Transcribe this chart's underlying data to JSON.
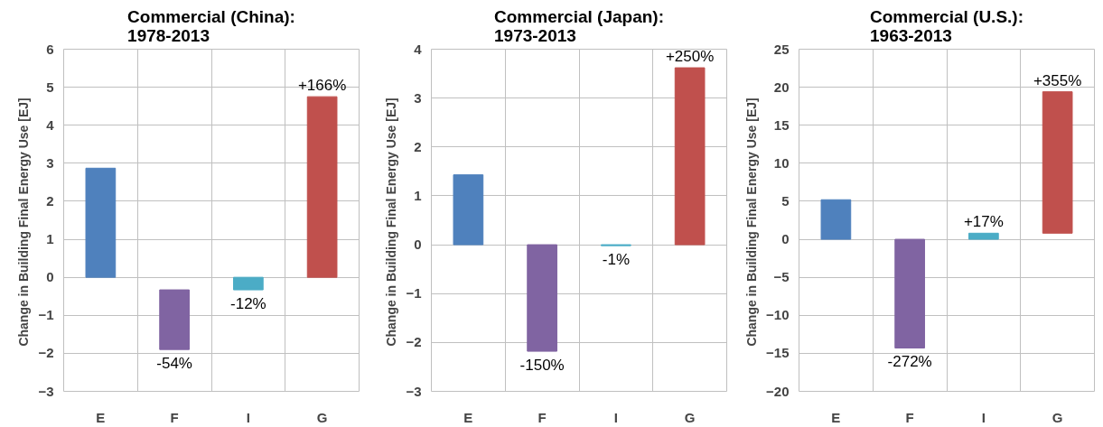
{
  "chart_data": [
    {
      "type": "bar",
      "title": "Commercial (China):\n1978-2013",
      "ylabel": "Change in Building  Final Energy Use [EJ]",
      "categories": [
        "E",
        "F",
        "I",
        "G"
      ],
      "values": [
        2.87,
        -1.57,
        -0.33,
        4.75
      ],
      "base": [
        0,
        -0.33,
        0,
        0
      ],
      "colors": [
        "#4f81bd",
        "#8064a2",
        "#4bacc6",
        "#c0504d"
      ],
      "ylim": [
        -3,
        6
      ],
      "yticks": [
        -3,
        -2,
        -1,
        0,
        1,
        2,
        3,
        4,
        5,
        6
      ],
      "grid": true,
      "annotations": [
        {
          "text": "+166%",
          "x": "G",
          "y": 4.75
        },
        {
          "text": "-54%",
          "x": "F",
          "y": -1.9
        },
        {
          "text": "-12%",
          "x": "I",
          "y": -0.33
        }
      ]
    },
    {
      "type": "bar",
      "title": "Commercial (Japan):\n1973-2013",
      "ylabel": "Change in Building  Final Energy Use [EJ]",
      "categories": [
        "E",
        "F",
        "I",
        "G"
      ],
      "values": [
        1.43,
        -2.18,
        -0.02,
        3.62
      ],
      "base": [
        0,
        0,
        0,
        0
      ],
      "colors": [
        "#4f81bd",
        "#8064a2",
        "#4bacc6",
        "#c0504d"
      ],
      "ylim": [
        -3,
        4
      ],
      "yticks": [
        -3,
        -2,
        -1,
        0,
        1,
        2,
        3,
        4
      ],
      "grid": true,
      "annotations": [
        {
          "text": "+250%",
          "x": "G",
          "y": 3.62
        },
        {
          "text": "-150%",
          "x": "F",
          "y": -2.18
        },
        {
          "text": "-1%",
          "x": "I",
          "y": -0.02
        }
      ]
    },
    {
      "type": "bar",
      "title": "Commercial (U.S.):\n1963-2013",
      "ylabel": "Change in Building  Final Energy Use [EJ]",
      "categories": [
        "E",
        "F",
        "I",
        "G"
      ],
      "values": [
        5.2,
        -14.3,
        0.8,
        18.6
      ],
      "base": [
        0,
        0,
        0,
        0.8
      ],
      "colors": [
        "#4f81bd",
        "#8064a2",
        "#4bacc6",
        "#c0504d"
      ],
      "ylim": [
        -20,
        25
      ],
      "yticks": [
        -20,
        -15,
        -10,
        -5,
        0,
        5,
        10,
        15,
        20,
        25
      ],
      "grid": true,
      "annotations": [
        {
          "text": "+355%",
          "x": "G",
          "y": 19.4
        },
        {
          "text": "-272%",
          "x": "F",
          "y": -14.3
        },
        {
          "text": "+17%",
          "x": "I",
          "y": 0.8
        }
      ]
    }
  ]
}
